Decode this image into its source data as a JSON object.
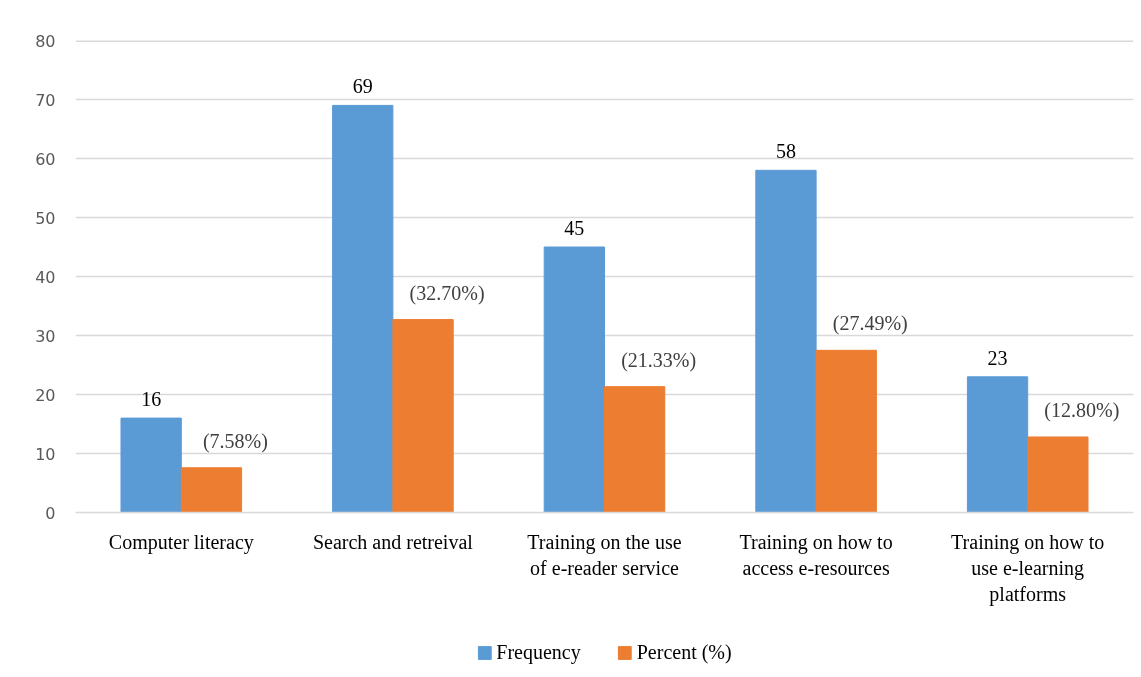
{
  "chart_data": {
    "type": "bar",
    "categories": [
      "Computer literacy",
      "Search and retreival",
      "Training on the use of e-reader service",
      "Training on how to access e-resources",
      "Training on how to use e-learning platforms"
    ],
    "series": [
      {
        "name": "Frequency",
        "color": "#5b9bd5",
        "values": [
          16,
          69,
          45,
          58,
          23
        ],
        "value_labels": [
          "16",
          "69",
          "45",
          "58",
          "23"
        ]
      },
      {
        "name": "Percent (%)",
        "color": "#ed7d31",
        "values": [
          7.58,
          32.7,
          21.33,
          27.49,
          12.8
        ],
        "value_labels": [
          "(7.58%)",
          "(32.70%)",
          "(21.33%)",
          "(27.49%)",
          "(12.80%)"
        ]
      }
    ],
    "ylim": [
      0,
      80
    ],
    "yticks": [
      0,
      10,
      20,
      30,
      40,
      50,
      60,
      70,
      80
    ],
    "grid": "y",
    "legend": "bottom"
  }
}
